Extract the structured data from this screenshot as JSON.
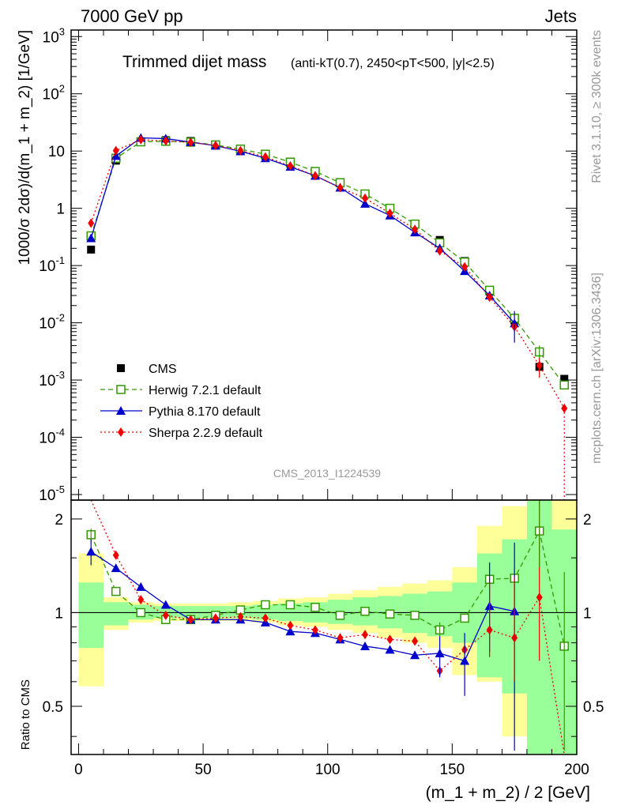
{
  "header": {
    "left": "7000 GeV pp",
    "right": "Jets"
  },
  "side_labels": {
    "rivet": "Rivet 3.1.10, ≥ 300k events",
    "mcplots": "mcplots.cern.ch [arXiv:1306.3436]"
  },
  "analysis_id": "CMS_2013_I1224539",
  "chart_data": [
    {
      "type": "line",
      "title": "Trimmed dijet mass",
      "title_detail": "(anti-kT(0.7), 2450<pT<500, |y|<2.5)",
      "ylabel": "1000/σ 2dσ)/d(m_1 + m_2) [1/GeV]",
      "xlabel": "(m_1 + m_2) / 2 [GeV]",
      "yscale": "log",
      "xlim": [
        -3,
        200
      ],
      "ylim": [
        8e-06,
        1300
      ],
      "x_ticks": [
        0,
        50,
        100,
        150,
        200
      ],
      "y_ticks": [
        "10^-5",
        "10^-4",
        "10^-3",
        "10^-2",
        "10^-1",
        "1",
        "10",
        "10^2",
        "10^3"
      ],
      "legend_position": "bottom-left",
      "x": [
        5,
        15,
        25,
        35,
        45,
        55,
        65,
        75,
        85,
        95,
        105,
        115,
        125,
        135,
        145,
        155,
        165,
        175,
        185,
        195
      ],
      "series": [
        {
          "name": "CMS",
          "color": "#000000",
          "marker": "filled-square",
          "values": [
            0.19,
            6.8,
            14.5,
            15.5,
            15.0,
            13.0,
            10.5,
            8.3,
            6.0,
            4.2,
            2.8,
            1.75,
            1.0,
            0.52,
            0.28,
            0.12,
            0.035,
            0.011,
            0.0017,
            0.00105
          ]
        },
        {
          "name": "Herwig 7.2.1 default",
          "color": "#339900",
          "marker": "open-square",
          "dash": "dashed",
          "values": [
            0.33,
            7.5,
            14.5,
            14.8,
            14.3,
            12.8,
            10.8,
            8.8,
            6.4,
            4.4,
            2.8,
            1.78,
            1.0,
            0.53,
            0.25,
            0.115,
            0.037,
            0.012,
            0.0031,
            0.00082
          ]
        },
        {
          "name": "Pythia 8.170 default",
          "color": "#0000cc",
          "marker": "filled-triangle",
          "dash": "solid",
          "values": [
            0.3,
            8.2,
            17.0,
            16.5,
            14.3,
            12.4,
            9.9,
            7.5,
            5.3,
            3.7,
            2.3,
            1.2,
            0.75,
            0.38,
            0.2,
            0.08,
            0.03,
            0.0098,
            null,
            null
          ]
        },
        {
          "name": "Sherpa 2.2.9 default",
          "color": "#ee0000",
          "marker": "filled-diamond",
          "dash": "dotted",
          "values": [
            0.55,
            10.2,
            15.8,
            15.0,
            14.2,
            12.5,
            10.2,
            7.9,
            5.5,
            3.7,
            2.3,
            1.5,
            0.82,
            0.43,
            0.18,
            0.095,
            0.028,
            0.0085,
            0.0018,
            0.00032
          ]
        }
      ]
    },
    {
      "type": "line",
      "ylabel": "Ratio to CMS",
      "xlabel": "(m_1 + m_2) / 2 [GeV]",
      "ylim": [
        0.35,
        2.3
      ],
      "y_ticks": [
        0.5,
        1,
        2
      ],
      "x": [
        5,
        15,
        25,
        35,
        45,
        55,
        65,
        75,
        85,
        95,
        105,
        115,
        125,
        135,
        145,
        155,
        165,
        175,
        185,
        195
      ],
      "bands": {
        "green_1sigma": [
          [
            0.77,
            1.25
          ],
          [
            0.91,
            1.08
          ],
          [
            0.95,
            1.06
          ],
          [
            0.96,
            1.05
          ],
          [
            0.96,
            1.05
          ],
          [
            0.96,
            1.05
          ],
          [
            0.96,
            1.05
          ],
          [
            0.95,
            1.06
          ],
          [
            0.94,
            1.07
          ],
          [
            0.93,
            1.08
          ],
          [
            0.92,
            1.1
          ],
          [
            0.91,
            1.12
          ],
          [
            0.89,
            1.13
          ],
          [
            0.86,
            1.15
          ],
          [
            0.84,
            1.17
          ],
          [
            0.8,
            1.25
          ],
          [
            0.62,
            1.55
          ],
          [
            0.55,
            1.72
          ],
          [
            0.3,
            2.5
          ],
          [
            0.3,
            1.85
          ]
        ],
        "yellow_2sigma": [
          [
            0.58,
            1.55
          ],
          [
            0.88,
            1.12
          ],
          [
            0.93,
            1.08
          ],
          [
            0.94,
            1.07
          ],
          [
            0.94,
            1.07
          ],
          [
            0.94,
            1.07
          ],
          [
            0.94,
            1.08
          ],
          [
            0.93,
            1.09
          ],
          [
            0.91,
            1.11
          ],
          [
            0.9,
            1.12
          ],
          [
            0.88,
            1.15
          ],
          [
            0.86,
            1.18
          ],
          [
            0.83,
            1.21
          ],
          [
            0.8,
            1.24
          ],
          [
            0.77,
            1.27
          ],
          [
            0.63,
            1.4
          ],
          [
            0.6,
            1.9
          ],
          [
            0.4,
            2.2
          ],
          [
            0.3,
            2.5
          ],
          [
            0.3,
            2.5
          ]
        ]
      },
      "series": [
        {
          "name": "Herwig 7.2.1 default",
          "color": "#339900",
          "marker": "open-square",
          "dash": "dashed",
          "values": [
            1.78,
            1.17,
            1.0,
            0.95,
            0.95,
            0.98,
            1.02,
            1.06,
            1.06,
            1.04,
            0.98,
            1.01,
            0.99,
            0.98,
            0.88,
            0.96,
            1.28,
            1.29,
            1.83,
            0.78
          ]
        },
        {
          "name": "Pythia 8.170 default",
          "color": "#0000cc",
          "marker": "filled-triangle",
          "dash": "solid",
          "values": [
            1.57,
            1.39,
            1.21,
            1.06,
            0.95,
            0.95,
            0.95,
            0.93,
            0.87,
            0.86,
            0.82,
            0.78,
            0.76,
            0.73,
            0.74,
            0.7,
            1.05,
            1.01,
            null,
            null
          ]
        },
        {
          "name": "Sherpa 2.2.9 default",
          "color": "#ee0000",
          "marker": "filled-diamond",
          "dash": "dotted",
          "values": [
            2.9,
            1.53,
            1.1,
            0.98,
            0.95,
            0.96,
            0.97,
            0.96,
            0.91,
            0.88,
            0.83,
            0.85,
            0.82,
            0.81,
            0.65,
            0.76,
            0.88,
            0.83,
            1.12,
            0.3
          ]
        }
      ]
    }
  ]
}
